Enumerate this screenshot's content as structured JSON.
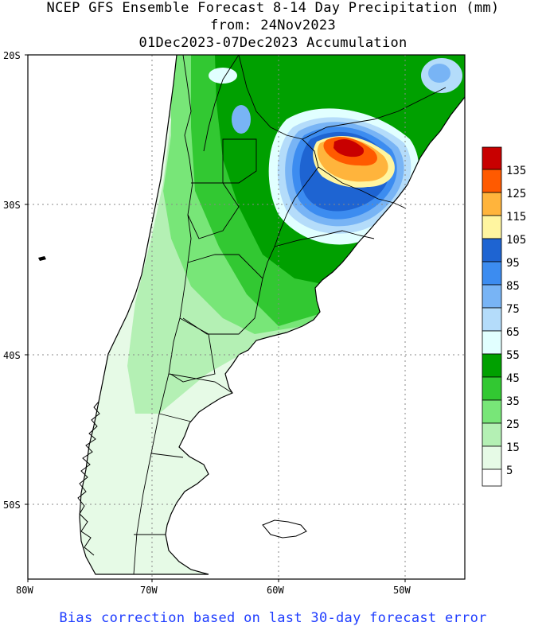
{
  "title": {
    "line1": "NCEP GFS Ensemble Forecast 8-14 Day Precipitation (mm)",
    "line2": "from: 24Nov2023",
    "line3": "01Dec2023-07Dec2023 Accumulation"
  },
  "axes": {
    "lat_labels": [
      "20S",
      "30S",
      "40S",
      "50S"
    ],
    "lon_labels": [
      "80W",
      "70W",
      "60W",
      "50W"
    ]
  },
  "legend": {
    "labels": [
      "135",
      "125",
      "115",
      "105",
      "95",
      "85",
      "75",
      "65",
      "55",
      "45",
      "35",
      "25",
      "15",
      "5"
    ],
    "colors": [
      "#c80000",
      "#ff5a00",
      "#ffb43c",
      "#fff5a0",
      "#1e64d2",
      "#3c8cf0",
      "#78b4f5",
      "#b4dcfa",
      "#e1ffff",
      "#00a000",
      "#32c832",
      "#78e678",
      "#b4f0b4",
      "#e6fae6",
      "#ffffff"
    ]
  },
  "footer": "Bias correction based on last 30-day forecast error"
}
